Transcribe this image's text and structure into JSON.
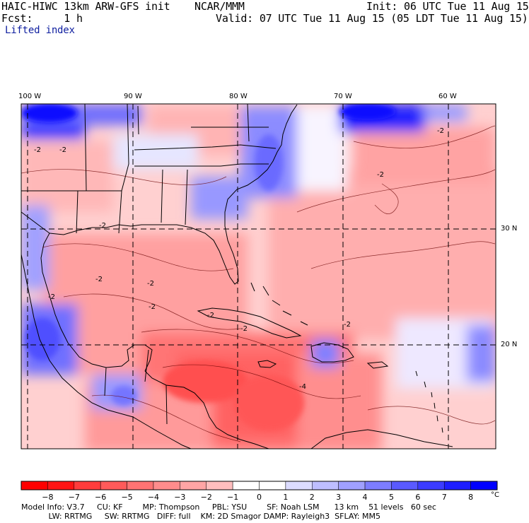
{
  "header": {
    "model": "HAIC-HIWC 13km ARW-GFS init",
    "org": "NCAR/MMM",
    "init": "Init: 06 UTC Tue 11 Aug 15",
    "fcst": "Fcst:     1 h",
    "valid": "Valid: 07 UTC Tue 11 Aug 15 (05 LDT Tue 11 Aug 15)",
    "field": "Lifted index"
  },
  "map": {
    "lon_labels": [
      "100 W",
      "90 W",
      "80 W",
      "70 W",
      "60 W"
    ],
    "lat_labels": [
      "30 N",
      "20 N"
    ],
    "contour_labels": [
      "-2",
      "-2",
      "-2",
      "-2",
      "-2",
      "-2",
      "-2",
      "-2",
      "-2",
      "-2",
      "-2",
      "-2",
      "-4"
    ]
  },
  "colorbar": {
    "ticks": [
      "−8",
      "−7",
      "−6",
      "−5",
      "−4",
      "−3",
      "−2",
      "−1",
      "0",
      "1",
      "2",
      "3",
      "4",
      "5",
      "6",
      "7",
      "8"
    ],
    "unit": "°C",
    "colors": [
      "#ff1414",
      "#ff3c3c",
      "#ff5a5a",
      "#ff7373",
      "#ff8c8c",
      "#ffa5a5",
      "#ffbebe",
      "#ffd7d7",
      "#ffffff",
      "#dcdcff",
      "#bebeff",
      "#a0a0ff",
      "#7d7dff",
      "#5a5aff",
      "#3c3cff",
      "#1e1eff",
      "#0000ff"
    ]
  },
  "footer": {
    "line1": "Model Info: V3.7     CU: KF        MP: Thompson     PBL: YSU        SF: Noah LSM      13 km    51 levels   60 sec",
    "line2": "           LW: RRTMG     SW: RRTMG   DIFF: full    KM: 2D Smagor DAMP: Rayleigh3  SFLAY: MM5"
  }
}
